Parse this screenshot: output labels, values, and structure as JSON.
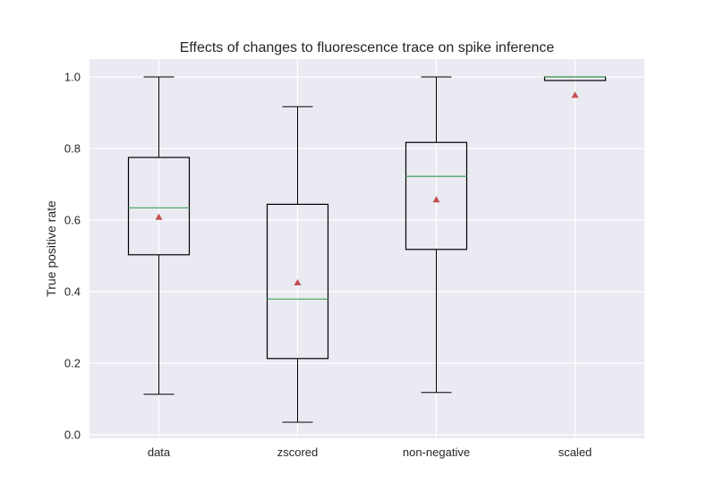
{
  "chart_data": {
    "type": "box",
    "title": "Effects of changes to fluorescence trace on spike inference",
    "xlabel": "",
    "ylabel": "True positive rate",
    "categories": [
      "data",
      "zscored",
      "non-negative",
      "scaled"
    ],
    "y_ticks": [
      "0.0",
      "0.2",
      "0.4",
      "0.6",
      "0.8",
      "1.0"
    ],
    "ylim": [
      -0.01,
      1.05
    ],
    "grid": true,
    "boxes": [
      {
        "whisker_low": 0.113,
        "q1": 0.503,
        "median": 0.634,
        "q3": 0.775,
        "whisker_high": 1.0,
        "mean": 0.608
      },
      {
        "whisker_low": 0.035,
        "q1": 0.213,
        "median": 0.379,
        "q3": 0.644,
        "whisker_high": 0.917,
        "mean": 0.425
      },
      {
        "whisker_low": 0.118,
        "q1": 0.518,
        "median": 0.722,
        "q3": 0.817,
        "whisker_high": 1.0,
        "mean": 0.657
      },
      {
        "whisker_low": 0.99,
        "q1": 0.99,
        "median": 1.0,
        "q3": 1.0,
        "whisker_high": 1.0,
        "mean": 0.949
      }
    ],
    "colors": {
      "background": "#eaeaf2",
      "grid": "#ffffff",
      "box": "#000000",
      "median": "#55a868",
      "mean": "#c44e52"
    }
  }
}
